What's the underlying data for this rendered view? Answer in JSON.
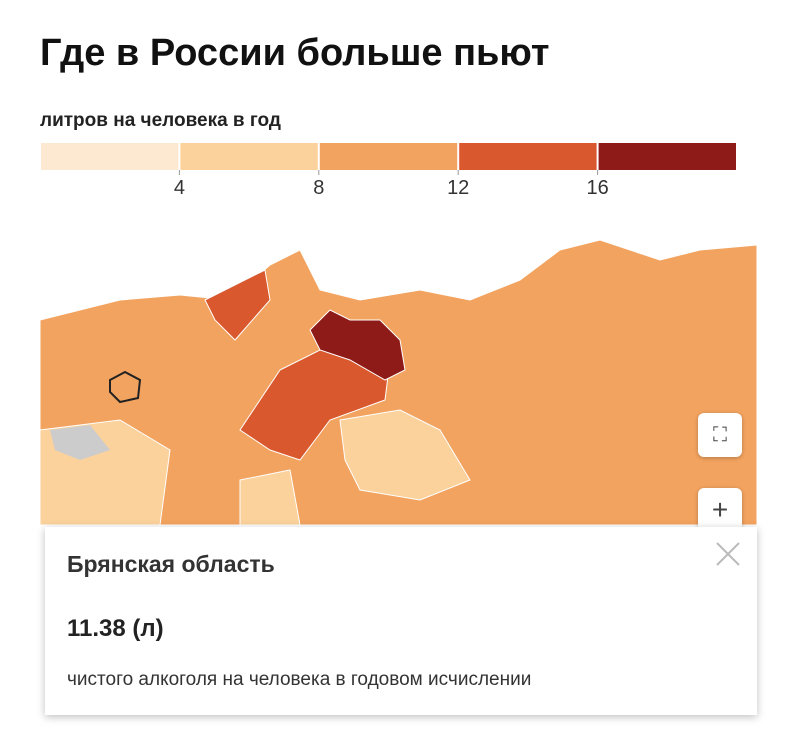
{
  "header": {
    "title": "Где в России больше пьют",
    "subtitle": "литров на человека в год"
  },
  "legend": {
    "colors": [
      "#fde9d2",
      "#fbd19c",
      "#f2a35f",
      "#d9582e",
      "#8e1b17"
    ],
    "ticks": [
      4,
      8,
      12,
      16
    ]
  },
  "tooltip": {
    "region": "Брянская область",
    "value": "11.38 (л)",
    "description": "чистого алкоголя на человека в годовом исчислении"
  }
}
